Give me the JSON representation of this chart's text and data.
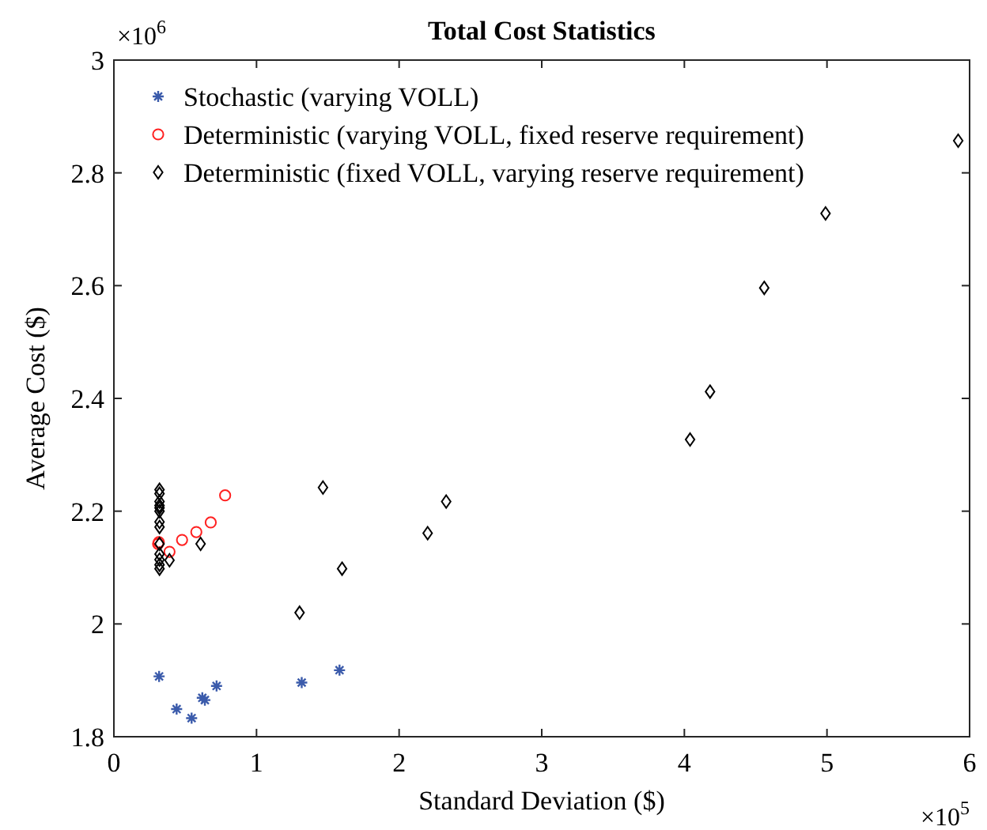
{
  "chart_data": {
    "type": "scatter",
    "title": "Total Cost Statistics",
    "xlabel": "Standard Deviation ($)",
    "ylabel": "Average Cost ($)",
    "annotations": [
      "×10$^{5}$",
      "×10$^{6}$"
    ],
    "xlim": [
      0,
      6
    ],
    "xticks": [
      0,
      1,
      2,
      3,
      4,
      5,
      6
    ],
    "ylim": [
      1.8,
      3
    ],
    "yticks": [
      1.8,
      2,
      2.2,
      2.4,
      2.6,
      2.8,
      3
    ],
    "grid": false,
    "legend": "top left",
    "series": [
      {
        "name": "Stochastic (varying VOLL)",
        "color": "#3b5bab",
        "marker": "cross",
        "x": [
          0.317,
          0.44,
          0.545,
          0.62,
          0.638,
          0.72,
          1.317,
          1.582
        ],
        "values": [
          1.907,
          1.849,
          1.833,
          1.869,
          1.865,
          1.89,
          1.896,
          1.918
        ]
      },
      {
        "name": "Deterministic (varying VOLL, fixed reserve requirement)",
        "color": "#ff2020",
        "marker": "circle",
        "x": [
          0.31,
          0.315,
          0.39,
          0.478,
          0.578,
          0.679,
          0.78
        ],
        "values": [
          2.142,
          2.145,
          2.128,
          2.149,
          2.163,
          2.18,
          2.228
        ]
      },
      {
        "name": "Deterministic (fixed VOLL, varying reserve requirement)",
        "color": "#000000",
        "marker": "diamond",
        "x": [
          0.32,
          0.32,
          0.32,
          0.32,
          0.32,
          0.32,
          0.32,
          0.32,
          0.32,
          0.32,
          0.32,
          0.32,
          0.32,
          0.39,
          0.608,
          1.302,
          1.466,
          1.6,
          2.2,
          2.33,
          4.04,
          4.18,
          4.56,
          4.99,
          5.92
        ],
        "values": [
          2.238,
          2.231,
          2.217,
          2.21,
          2.206,
          2.2,
          2.181,
          2.172,
          2.142,
          2.124,
          2.114,
          2.105,
          2.098,
          2.113,
          2.142,
          2.02,
          2.242,
          2.098,
          2.161,
          2.217,
          2.327,
          2.412,
          2.596,
          2.728,
          2.857
        ]
      }
    ]
  }
}
